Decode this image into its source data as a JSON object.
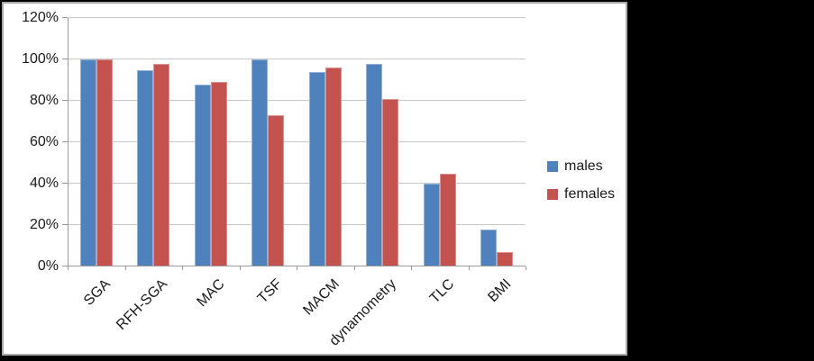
{
  "chart_data": {
    "type": "bar",
    "title": "",
    "xlabel": "",
    "ylabel": "",
    "categories": [
      "SGA",
      "RFH-SGA",
      "MAC",
      "TSF",
      "MACM",
      "dynamometry",
      "TLC",
      "BMI"
    ],
    "series": [
      {
        "name": "males",
        "color": "#4F81BD",
        "values": [
          100,
          95,
          88,
          100,
          94,
          98,
          40,
          18
        ]
      },
      {
        "name": "females",
        "color": "#C4524E",
        "values": [
          100,
          98,
          89,
          73,
          96,
          81,
          45,
          7
        ]
      }
    ],
    "value_unit": "percent",
    "ylim": [
      0,
      120
    ],
    "ytick_step": 20,
    "ytick_labels": [
      "0%",
      "20%",
      "40%",
      "60%",
      "80%",
      "100%",
      "120%"
    ],
    "grid": true,
    "legend_position": "right-middle",
    "plot_background": "#ffffff",
    "outer_background": "#000000",
    "gridline_color": "#c9c9c9",
    "axis_color": "#9a9a9a"
  }
}
